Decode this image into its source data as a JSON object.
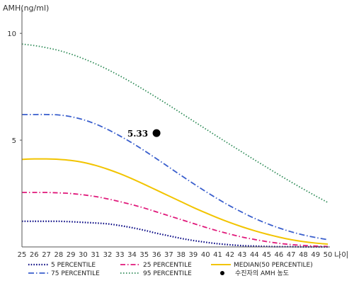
{
  "chart_data": {
    "type": "line",
    "ylabel": "AMH(ng/ml)",
    "xlabel": "나이",
    "x": [
      25,
      26,
      27,
      28,
      29,
      30,
      31,
      32,
      33,
      34,
      35,
      36,
      37,
      38,
      39,
      40,
      41,
      42,
      43,
      44,
      45,
      46,
      47,
      48,
      49,
      50
    ],
    "xlim": [
      25,
      50
    ],
    "ylim": [
      0,
      10.9
    ],
    "yticks": [
      5,
      10
    ],
    "grid": false,
    "legend": "bottom",
    "series": [
      {
        "name": "5 PERCENTILE",
        "color": "#000080",
        "dash": "1.5,2.2",
        "width": 2.2,
        "values": [
          1.2,
          1.2,
          1.2,
          1.2,
          1.18,
          1.15,
          1.12,
          1.08,
          1.0,
          0.9,
          0.78,
          0.64,
          0.52,
          0.4,
          0.3,
          0.22,
          0.15,
          0.1,
          0.06,
          0.04,
          0.02,
          0.01,
          0.01,
          0.0,
          0.0,
          0.0
        ]
      },
      {
        "name": "25 PERCENTILE",
        "color": "#e0187a",
        "dash": "7,3,1.5,3",
        "width": 1.8,
        "values": [
          2.55,
          2.55,
          2.55,
          2.53,
          2.5,
          2.44,
          2.36,
          2.25,
          2.12,
          1.98,
          1.82,
          1.64,
          1.46,
          1.28,
          1.1,
          0.92,
          0.75,
          0.6,
          0.46,
          0.35,
          0.25,
          0.17,
          0.11,
          0.07,
          0.04,
          0.02
        ]
      },
      {
        "name": "MEDIAN(50 PERCENTILE)",
        "color": "#f2c400",
        "dash": "",
        "width": 2,
        "values": [
          4.1,
          4.12,
          4.12,
          4.1,
          4.05,
          3.96,
          3.82,
          3.64,
          3.43,
          3.19,
          2.93,
          2.66,
          2.39,
          2.12,
          1.85,
          1.6,
          1.36,
          1.14,
          0.94,
          0.76,
          0.6,
          0.46,
          0.34,
          0.25,
          0.18,
          0.13
        ]
      },
      {
        "name": "75 PERCENTILE",
        "color": "#3a5fcd",
        "dash": "8,3,1.5,3",
        "width": 1.8,
        "values": [
          6.2,
          6.2,
          6.2,
          6.18,
          6.1,
          5.96,
          5.76,
          5.5,
          5.2,
          4.87,
          4.51,
          4.13,
          3.74,
          3.35,
          2.97,
          2.6,
          2.25,
          1.92,
          1.62,
          1.34,
          1.1,
          0.89,
          0.71,
          0.56,
          0.44,
          0.34
        ]
      },
      {
        "name": "95 PERCENTILE",
        "color": "#2e8b57",
        "dash": "1.5,2.5",
        "width": 1.8,
        "values": [
          9.5,
          9.43,
          9.33,
          9.2,
          9.03,
          8.82,
          8.58,
          8.31,
          8.01,
          7.69,
          7.35,
          7.0,
          6.64,
          6.27,
          5.9,
          5.53,
          5.16,
          4.8,
          4.44,
          4.08,
          3.73,
          3.38,
          3.04,
          2.71,
          2.39,
          2.08
        ]
      }
    ],
    "point": {
      "name": "수진자의 AMH 농도",
      "x": 36,
      "y": 5.33,
      "label": "5.33",
      "color": "#000000"
    }
  }
}
